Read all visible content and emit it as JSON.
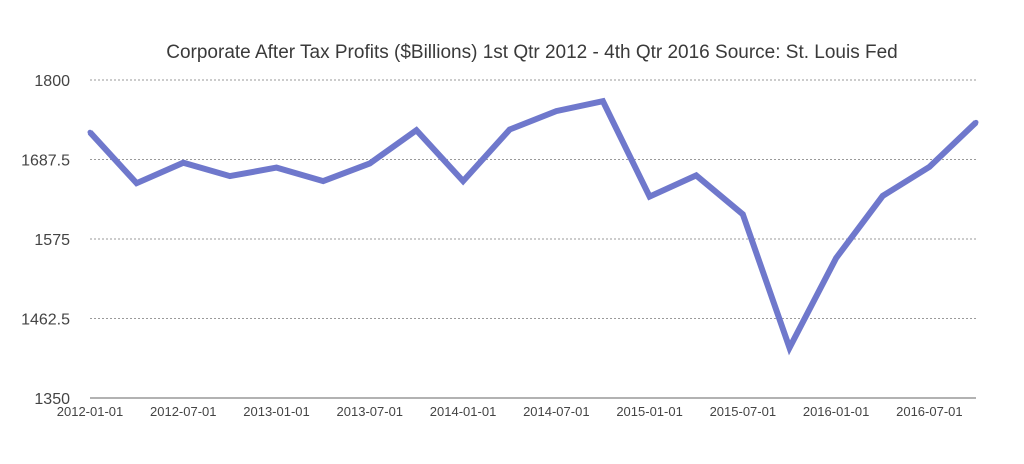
{
  "chart_data": {
    "type": "line",
    "title": "Corporate After Tax Profits ($Billions) 1st Qtr 2012 - 4th Qtr 2016 Source: St. Louis Fed",
    "xlabel": "",
    "ylabel": "",
    "ylim": [
      1350,
      1800
    ],
    "yticks": [
      "1800",
      "1687.5",
      "1575",
      "1462.5",
      "1350"
    ],
    "ytick_values": [
      1800,
      1687.5,
      1575,
      1462.5,
      1350
    ],
    "xticks": [
      "2012-01-01",
      "2012-07-01",
      "2013-01-01",
      "2013-07-01",
      "2014-01-01",
      "2014-07-01",
      "2015-01-01",
      "2015-07-01",
      "2016-01-01",
      "2016-07-01"
    ],
    "xtick_indices": [
      0,
      2,
      4,
      6,
      8,
      10,
      12,
      14,
      16,
      18
    ],
    "grid": true,
    "color": "#6f78cc",
    "series": [
      {
        "name": "",
        "x": [
          "2012-01-01",
          "2012-04-01",
          "2012-07-01",
          "2012-10-01",
          "2013-01-01",
          "2013-04-01",
          "2013-07-01",
          "2013-10-01",
          "2014-01-01",
          "2014-04-01",
          "2014-07-01",
          "2014-10-01",
          "2015-01-01",
          "2015-04-01",
          "2015-07-01",
          "2015-10-01",
          "2016-01-01",
          "2016-04-01",
          "2016-07-01",
          "2016-10-01"
        ],
        "values": [
          1726,
          1654,
          1683,
          1664,
          1676,
          1657,
          1682,
          1729,
          1657,
          1730,
          1756,
          1770,
          1635,
          1665,
          1610,
          1421,
          1548,
          1636,
          1677,
          1740
        ]
      }
    ]
  }
}
